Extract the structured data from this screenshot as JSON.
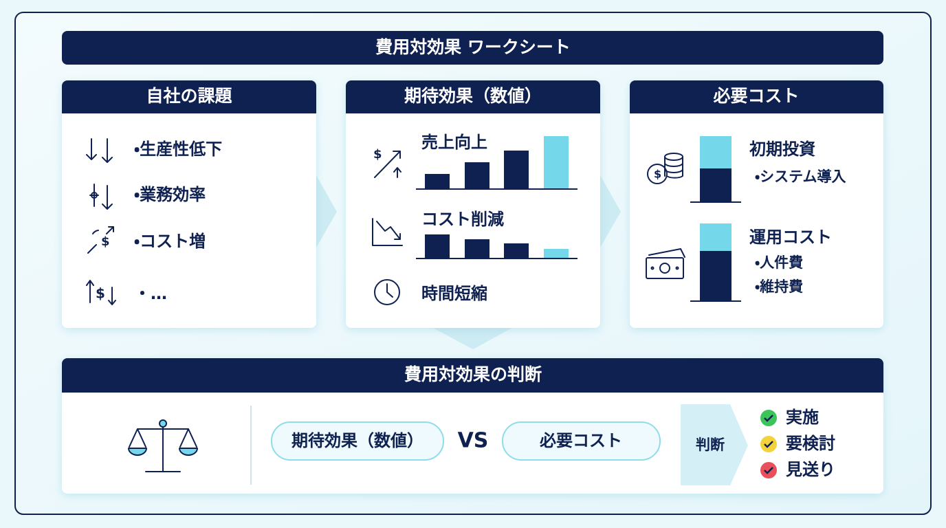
{
  "title": "費用対効果 ワークシート",
  "panels": [
    {
      "title": "自社の課題",
      "items": [
        "・生産性低下",
        "・業務効率",
        "・コスト増",
        "・…"
      ]
    },
    {
      "title": "期待効果（数値）",
      "items": [
        "売上向上",
        "コスト削減",
        "時間短縮"
      ]
    },
    {
      "title": "必要コスト",
      "groups": [
        {
          "label": "初期投資",
          "details": [
            "・システム導入"
          ]
        },
        {
          "label": "運用コスト",
          "details": [
            "・人件費",
            "・維持費"
          ]
        }
      ]
    }
  ],
  "judgement": {
    "title": "費用対効果の判断",
    "left": "期待効果（数値）",
    "vs": "VS",
    "right": "必要コスト",
    "decision": "判断",
    "outcomes": [
      "実施",
      "要検討",
      "見送り"
    ]
  }
}
